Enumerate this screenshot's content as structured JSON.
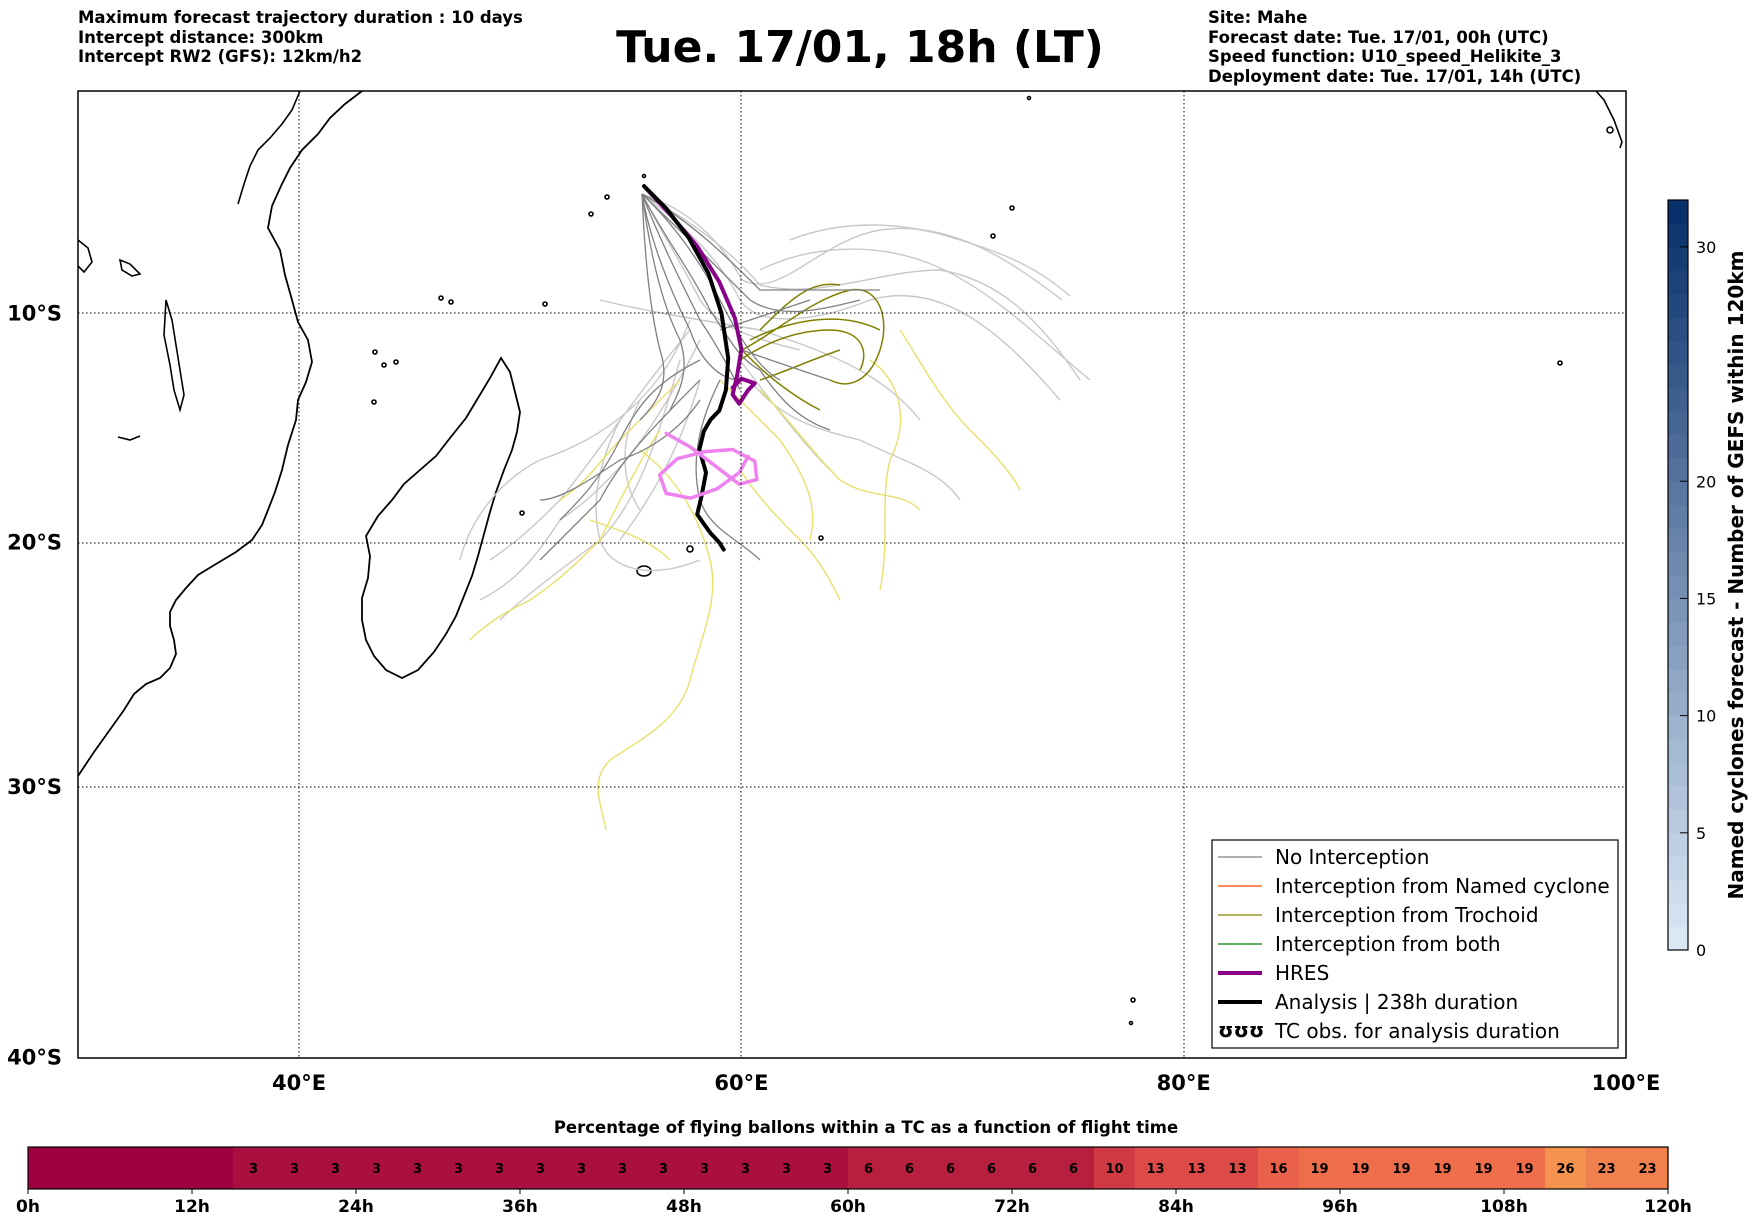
{
  "header": {
    "left": [
      "Maximum forecast trajectory duration : 10 days",
      "Intercept distance: 300km",
      "Intercept RW2 (GFS):  12km/h2"
    ],
    "title": "Tue. 17/01, 18h (LT)",
    "right": [
      "Site: Mahe",
      "Forecast date: Tue. 17/01, 00h (UTC)",
      "Speed function: U10_speed_Helikite_3",
      "Deployment date: Tue. 17/01, 14h (UTC)"
    ]
  },
  "chart_data": [
    {
      "type": "line",
      "title": "Tue. 17/01, 18h (LT)",
      "xlim": [
        30,
        100
      ],
      "ylim": [
        -40,
        0
      ],
      "x_ticks": [
        {
          "value": 40,
          "label": "40°E"
        },
        {
          "value": 60,
          "label": "60°E"
        },
        {
          "value": 80,
          "label": "80°E"
        },
        {
          "value": 100,
          "label": "100°E"
        }
      ],
      "y_ticks": [
        {
          "value": -10,
          "label": "10°S"
        },
        {
          "value": -20,
          "label": "20°S"
        },
        {
          "value": -30,
          "label": "30°S"
        },
        {
          "value": -40,
          "label": "40°S"
        }
      ],
      "grid": true,
      "legend_position": "bottom-right",
      "legend": [
        {
          "label": "No Interception",
          "color": "#808080",
          "style": "line"
        },
        {
          "label": "Interception from Named cyclone",
          "color": "#ff4500",
          "style": "line"
        },
        {
          "label": "Interception from Trochoid",
          "color": "#808000",
          "style": "line"
        },
        {
          "label": "Interception from both",
          "color": "#008000",
          "style": "line"
        },
        {
          "label": "HRES",
          "color": "#8b008b",
          "style": "thick"
        },
        {
          "label": "Analysis | 238h duration",
          "color": "#000000",
          "style": "thick"
        },
        {
          "label": "TC obs. for analysis duration",
          "color": "#000000",
          "style": "symbol"
        }
      ],
      "series": [
        {
          "name": "HRES",
          "color": "#8b008b",
          "x": [
            55.6,
            56.8,
            58.0,
            59.0,
            59.7,
            60.0,
            59.8,
            59.6,
            59.9,
            60.3,
            60.6,
            60.0,
            59.6
          ],
          "y": [
            -4.3,
            -5.6,
            -7.0,
            -8.6,
            -10.2,
            -11.6,
            -12.8,
            -13.6,
            -14.0,
            -13.4,
            -13.1,
            -12.9,
            -13.3
          ]
        },
        {
          "name": "Analysis | 238h duration",
          "color": "#000000",
          "x": [
            55.6,
            56.6,
            57.6,
            58.5,
            59.1,
            59.4,
            59.3,
            59.0,
            58.6,
            58.3,
            58.1,
            58.4,
            58.2,
            58.0,
            58.3,
            58.6,
            58.8,
            59.0,
            59.2
          ],
          "y": [
            -4.3,
            -5.3,
            -6.6,
            -8.2,
            -10.0,
            -12.0,
            -13.4,
            -14.3,
            -14.7,
            -15.2,
            -16.0,
            -17.0,
            -18.0,
            -18.8,
            -19.2,
            -19.6,
            -19.8,
            -20.0,
            -20.3
          ]
        },
        {
          "name": "HRES loop",
          "color": "#ee82ee",
          "x": [
            56.6,
            57.7,
            58.8,
            59.9,
            60.7,
            60.6,
            59.6,
            58.3,
            57.1,
            56.3,
            56.6,
            57.7,
            58.9,
            59.9,
            60.3
          ],
          "y": [
            -15.3,
            -15.9,
            -16.7,
            -17.5,
            -17.3,
            -16.5,
            -16.0,
            -16.1,
            -16.4,
            -17.1,
            -17.9,
            -18.1,
            -17.7,
            -17.0,
            -16.3
          ]
        }
      ],
      "ensemble_colors": {
        "no_interception": "#808080",
        "ensemble_light": "#c8c8c8",
        "trochoid": "#808000",
        "yellow": "#e8e06a"
      }
    },
    {
      "type": "heatmap",
      "title": "Named cyclones forecast - Number of GEFS within 120km",
      "orientation": "vertical",
      "ticks": [
        0,
        5,
        10,
        15,
        20,
        30
      ],
      "range": [
        0,
        32
      ],
      "colors": [
        "#dae8f6",
        "#08306b"
      ]
    },
    {
      "type": "heatmap",
      "title": "Percentage of flying ballons within a TC as a function of flight time",
      "x_ticks": [
        "0h",
        "12h",
        "24h",
        "36h",
        "48h",
        "60h",
        "72h",
        "84h",
        "96h",
        "108h",
        "120h"
      ],
      "values": [
        0,
        0,
        0,
        0,
        0,
        3,
        3,
        3,
        3,
        3,
        3,
        3,
        3,
        3,
        3,
        3,
        3,
        3,
        3,
        3,
        6,
        6,
        6,
        6,
        6,
        6,
        10,
        13,
        13,
        13,
        16,
        19,
        19,
        19,
        19,
        19,
        19,
        26,
        23,
        23
      ],
      "unit_step_hours": 3,
      "colors": {
        "0": "#9e0142",
        "3": "#a9103f",
        "6": "#b61f3d",
        "10": "#cf3a43",
        "13": "#dd4b49",
        "16": "#e9604b",
        "19": "#ee6d4b",
        "23": "#f0814f",
        "26": "#f5924f"
      }
    }
  ]
}
